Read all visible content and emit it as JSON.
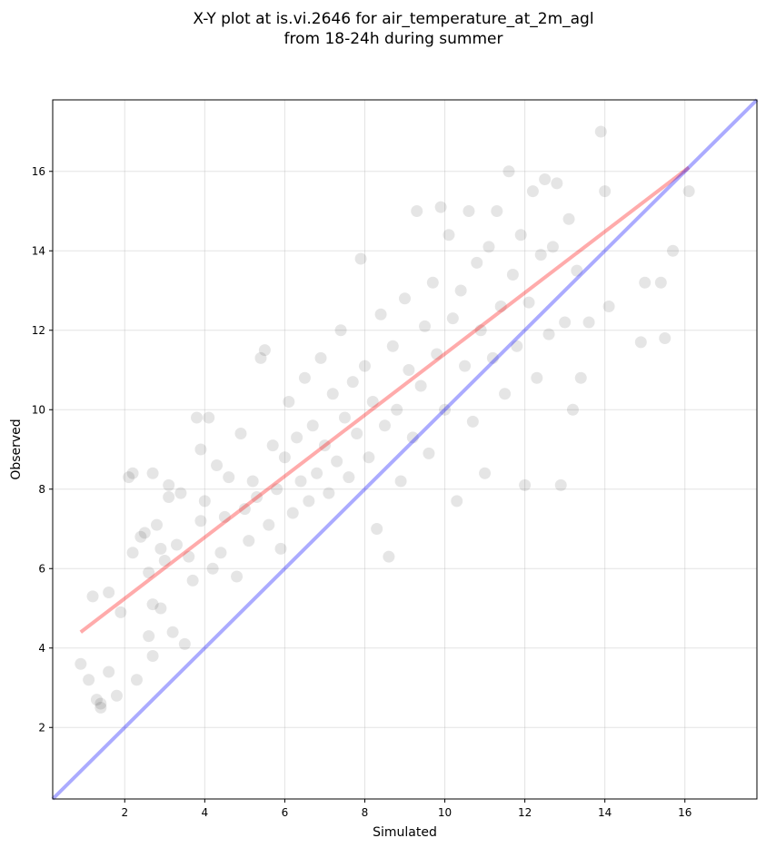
{
  "title_line1": "X-Y plot at is.vi.2646 for air_temperature_at_2m_agl",
  "title_line2": "from 18-24h during summer",
  "chart_data": {
    "type": "scatter",
    "title": "X-Y plot at is.vi.2646 for air_temperature_at_2m_agl from 18-24h during summer",
    "xlabel": "Simulated",
    "ylabel": "Observed",
    "xlim": [
      0.2,
      17.8
    ],
    "ylim": [
      0.2,
      17.8
    ],
    "xticks": [
      2,
      4,
      6,
      8,
      10,
      12,
      14,
      16
    ],
    "yticks": [
      2,
      4,
      6,
      8,
      10,
      12,
      14,
      16
    ],
    "grid": true,
    "series": [
      {
        "kind": "points",
        "color": "#000000",
        "opacity": 0.1,
        "points": [
          [
            0.9,
            3.6
          ],
          [
            1.1,
            3.2
          ],
          [
            1.2,
            5.3
          ],
          [
            1.3,
            2.7
          ],
          [
            1.4,
            2.6
          ],
          [
            1.4,
            2.5
          ],
          [
            1.6,
            3.4
          ],
          [
            1.6,
            5.4
          ],
          [
            1.8,
            2.8
          ],
          [
            1.9,
            4.9
          ],
          [
            2.1,
            8.3
          ],
          [
            2.2,
            8.4
          ],
          [
            2.2,
            6.4
          ],
          [
            2.3,
            3.2
          ],
          [
            2.4,
            6.8
          ],
          [
            2.5,
            6.9
          ],
          [
            2.6,
            5.9
          ],
          [
            2.7,
            5.1
          ],
          [
            2.7,
            8.4
          ],
          [
            2.8,
            7.1
          ],
          [
            2.9,
            6.5
          ],
          [
            3.0,
            6.2
          ],
          [
            3.1,
            8.1
          ],
          [
            3.1,
            7.8
          ],
          [
            3.2,
            4.4
          ],
          [
            3.3,
            6.6
          ],
          [
            3.4,
            7.9
          ],
          [
            3.5,
            4.1
          ],
          [
            3.6,
            6.3
          ],
          [
            3.7,
            5.7
          ],
          [
            3.8,
            9.8
          ],
          [
            3.9,
            7.2
          ],
          [
            3.9,
            9.0
          ],
          [
            4.0,
            7.7
          ],
          [
            4.1,
            9.8
          ],
          [
            4.2,
            6.0
          ],
          [
            4.3,
            8.6
          ],
          [
            4.4,
            6.4
          ],
          [
            4.5,
            7.3
          ],
          [
            4.6,
            8.3
          ],
          [
            4.8,
            5.8
          ],
          [
            4.9,
            9.4
          ],
          [
            5.0,
            7.5
          ],
          [
            5.1,
            6.7
          ],
          [
            5.2,
            8.2
          ],
          [
            5.3,
            7.8
          ],
          [
            5.4,
            11.3
          ],
          [
            5.5,
            11.5
          ],
          [
            5.6,
            7.1
          ],
          [
            5.7,
            9.1
          ],
          [
            5.8,
            8.0
          ],
          [
            5.9,
            6.5
          ],
          [
            6.0,
            8.8
          ],
          [
            6.1,
            10.2
          ],
          [
            6.2,
            7.4
          ],
          [
            6.3,
            9.3
          ],
          [
            6.4,
            8.2
          ],
          [
            6.5,
            10.8
          ],
          [
            6.6,
            7.7
          ],
          [
            6.7,
            9.6
          ],
          [
            6.8,
            8.4
          ],
          [
            6.9,
            11.3
          ],
          [
            7.0,
            9.1
          ],
          [
            7.1,
            7.9
          ],
          [
            7.2,
            10.4
          ],
          [
            7.3,
            8.7
          ],
          [
            7.4,
            12.0
          ],
          [
            7.5,
            9.8
          ],
          [
            7.6,
            8.3
          ],
          [
            7.7,
            10.7
          ],
          [
            7.8,
            9.4
          ],
          [
            7.9,
            13.8
          ],
          [
            8.0,
            11.1
          ],
          [
            8.1,
            8.8
          ],
          [
            8.2,
            10.2
          ],
          [
            8.3,
            7.0
          ],
          [
            8.4,
            12.4
          ],
          [
            8.5,
            9.6
          ],
          [
            8.6,
            6.3
          ],
          [
            8.7,
            11.6
          ],
          [
            8.8,
            10.0
          ],
          [
            8.9,
            8.2
          ],
          [
            9.0,
            12.8
          ],
          [
            9.1,
            11.0
          ],
          [
            9.2,
            9.3
          ],
          [
            9.3,
            15.0
          ],
          [
            9.4,
            10.6
          ],
          [
            9.5,
            12.1
          ],
          [
            9.6,
            8.9
          ],
          [
            9.7,
            13.2
          ],
          [
            9.8,
            11.4
          ],
          [
            9.9,
            15.1
          ],
          [
            10.0,
            10.0
          ],
          [
            10.1,
            14.4
          ],
          [
            10.2,
            12.3
          ],
          [
            10.3,
            7.7
          ],
          [
            10.4,
            13.0
          ],
          [
            10.5,
            11.1
          ],
          [
            10.6,
            15.0
          ],
          [
            10.7,
            9.7
          ],
          [
            10.8,
            13.7
          ],
          [
            10.9,
            12.0
          ],
          [
            11.0,
            8.4
          ],
          [
            11.1,
            14.1
          ],
          [
            11.2,
            11.3
          ],
          [
            11.3,
            15.0
          ],
          [
            11.4,
            12.6
          ],
          [
            11.5,
            10.4
          ],
          [
            11.6,
            16.0
          ],
          [
            11.7,
            13.4
          ],
          [
            11.8,
            11.6
          ],
          [
            11.9,
            14.4
          ],
          [
            12.0,
            8.1
          ],
          [
            12.1,
            12.7
          ],
          [
            12.2,
            15.5
          ],
          [
            12.3,
            10.8
          ],
          [
            12.4,
            13.9
          ],
          [
            12.5,
            15.8
          ],
          [
            12.6,
            11.9
          ],
          [
            12.7,
            14.1
          ],
          [
            12.8,
            15.7
          ],
          [
            12.9,
            8.1
          ],
          [
            13.0,
            12.2
          ],
          [
            13.1,
            14.8
          ],
          [
            13.2,
            10.0
          ],
          [
            13.3,
            13.5
          ],
          [
            13.4,
            10.8
          ],
          [
            13.6,
            12.2
          ],
          [
            13.9,
            17.0
          ],
          [
            14.0,
            15.5
          ],
          [
            14.1,
            12.6
          ],
          [
            14.9,
            11.7
          ],
          [
            15.0,
            13.2
          ],
          [
            15.4,
            13.2
          ],
          [
            15.5,
            11.8
          ],
          [
            15.7,
            14.0
          ],
          [
            16.1,
            15.5
          ],
          [
            2.7,
            3.8
          ],
          [
            2.6,
            4.3
          ],
          [
            2.9,
            5.0
          ]
        ]
      },
      {
        "name": "",
        "kind": "line",
        "color": "#ff0000",
        "opacity": 0.33,
        "points": [
          [
            0.9,
            4.4
          ],
          [
            16.1,
            16.1
          ]
        ]
      },
      {
        "name": "",
        "kind": "line",
        "color": "#0000ff",
        "opacity": 0.33,
        "points": [
          [
            0.2,
            0.2
          ],
          [
            17.8,
            17.8
          ]
        ]
      }
    ]
  }
}
